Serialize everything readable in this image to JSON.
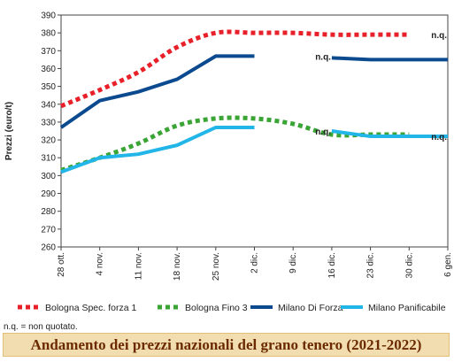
{
  "chart_data": {
    "type": "line",
    "title": "Andamento dei prezzi nazionali del grano tenero (2021-2022)",
    "ylabel": "Prezzi (euro/t)",
    "xlabel": "",
    "ylim": [
      260,
      390
    ],
    "y_ticks": [
      260,
      270,
      280,
      290,
      300,
      310,
      320,
      330,
      340,
      350,
      360,
      370,
      380,
      390
    ],
    "categories": [
      "28 ott.",
      "4 nov.",
      "11 nov.",
      "18 nov.",
      "25 nov.",
      "2 dic.",
      "9 dic.",
      "16 dic.",
      "23 dic.",
      "30 dic.",
      "6 gen."
    ],
    "grid": false,
    "legend_position": "bottom",
    "series": [
      {
        "name": "Bologna Spec. forza 1",
        "color": "#e8202a",
        "style": "dotted",
        "values": [
          339,
          348,
          358,
          372,
          380,
          380,
          380,
          379,
          379,
          379,
          null
        ]
      },
      {
        "name": "Bologna Fino 3",
        "color": "#3aa535",
        "style": "dotted",
        "values": [
          303,
          310,
          318,
          328,
          332,
          332,
          329,
          323,
          323,
          323,
          null
        ]
      },
      {
        "name": "Milano Di Forza",
        "color": "#0b4a8e",
        "style": "solid",
        "values": [
          327,
          342,
          347,
          354,
          367,
          367,
          null,
          366,
          365,
          365,
          365
        ]
      },
      {
        "name": "Milano Panificabile",
        "color": "#22b5e8",
        "style": "solid",
        "values": [
          302,
          310,
          312,
          317,
          327,
          327,
          null,
          325,
          322,
          322,
          322
        ]
      }
    ],
    "annotations": [
      {
        "text": "n.q.",
        "category": "30 dic.",
        "value": 379
      },
      {
        "text": "n.q.",
        "category": "9 dic.",
        "value": 367
      },
      {
        "text": "n.q.",
        "category": "9 dic.",
        "value": 325
      },
      {
        "text": "n.q.",
        "category": "30 dic.",
        "value": 322
      }
    ]
  },
  "footnote": "n.q. = non quotato."
}
